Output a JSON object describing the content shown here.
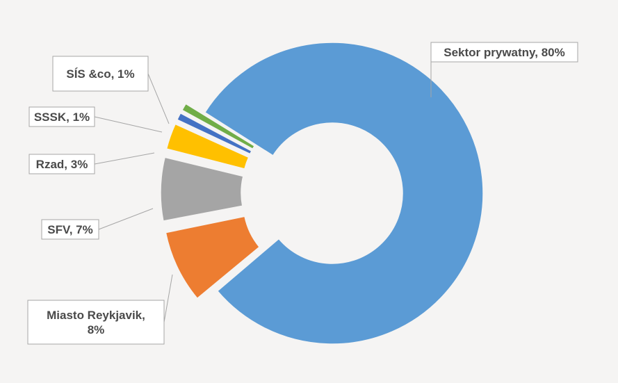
{
  "chart_data": {
    "type": "pie",
    "variant": "exploded-donut",
    "title": "",
    "series": [
      {
        "name": "Sektor prywatny",
        "value": 80,
        "color": "#5b9bd5",
        "label": "Sektor prywatny, 80%"
      },
      {
        "name": "Miasto Reykjavik",
        "value": 8,
        "color": "#ed7d31",
        "label": [
          "Miasto Reykjavik,",
          "8%"
        ]
      },
      {
        "name": "SFV",
        "value": 7,
        "color": "#a5a5a5",
        "label": "SFV, 7%"
      },
      {
        "name": "Rzad",
        "value": 3,
        "color": "#ffc000",
        "label": "Rzad, 3%"
      },
      {
        "name": "SSSK",
        "value": 1,
        "color": "#4472c4",
        "label": "SSSK, 1%"
      },
      {
        "name": "SÍS &co",
        "value": 1,
        "color": "#70ad47",
        "label": "SÍS &co, 1%"
      }
    ]
  }
}
